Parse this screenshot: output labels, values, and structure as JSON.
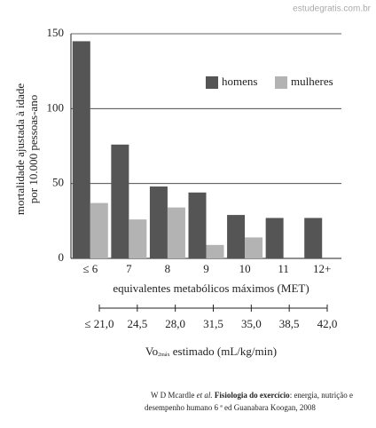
{
  "watermark": "estudegratis.com.br",
  "chart_data": {
    "type": "bar",
    "y_label": [
      "mortalidade ajustada à idade",
      "por 10.000 pessoas-ano"
    ],
    "x_label": "equivalentes metabólicos máximos (MET)",
    "categories": [
      "≤ 6",
      "7",
      "8",
      "9",
      "10",
      "11",
      "12+"
    ],
    "series": [
      {
        "name": "homens",
        "color": "#555555",
        "values": [
          145,
          76,
          48,
          44,
          29,
          27,
          27
        ]
      },
      {
        "name": "mulheres",
        "color": "#b3b3b3",
        "values": [
          37,
          26,
          34,
          9,
          14,
          null,
          null
        ]
      }
    ],
    "ylim": [
      0,
      150
    ],
    "yticks": [
      0,
      50,
      100,
      150
    ],
    "grid": true,
    "x2_label": {
      "main": "Vo",
      "sub": "2máx",
      "rest": " estimado (mL/kg/min)"
    },
    "x2lim": [
      21,
      42
    ],
    "x2ticks": [
      {
        "value": 21,
        "label": "≤ 21,0"
      },
      {
        "value": 24.5,
        "label": "24,5"
      },
      {
        "value": 28,
        "label": "28,0"
      },
      {
        "value": 31.5,
        "label": "31,5"
      },
      {
        "value": 35,
        "label": "35,0"
      },
      {
        "value": 38.5,
        "label": "38,5"
      },
      {
        "value": 42,
        "label": "42,0"
      }
    ]
  },
  "citation": {
    "author": "W D Mcardle ",
    "etal": "et al.",
    "title": " Fisiologia do exercício",
    "rest1": ": energia, nutrição e",
    "rest2": "desempenho humano 6 ª ed Guanabara Koogan, 2008"
  }
}
